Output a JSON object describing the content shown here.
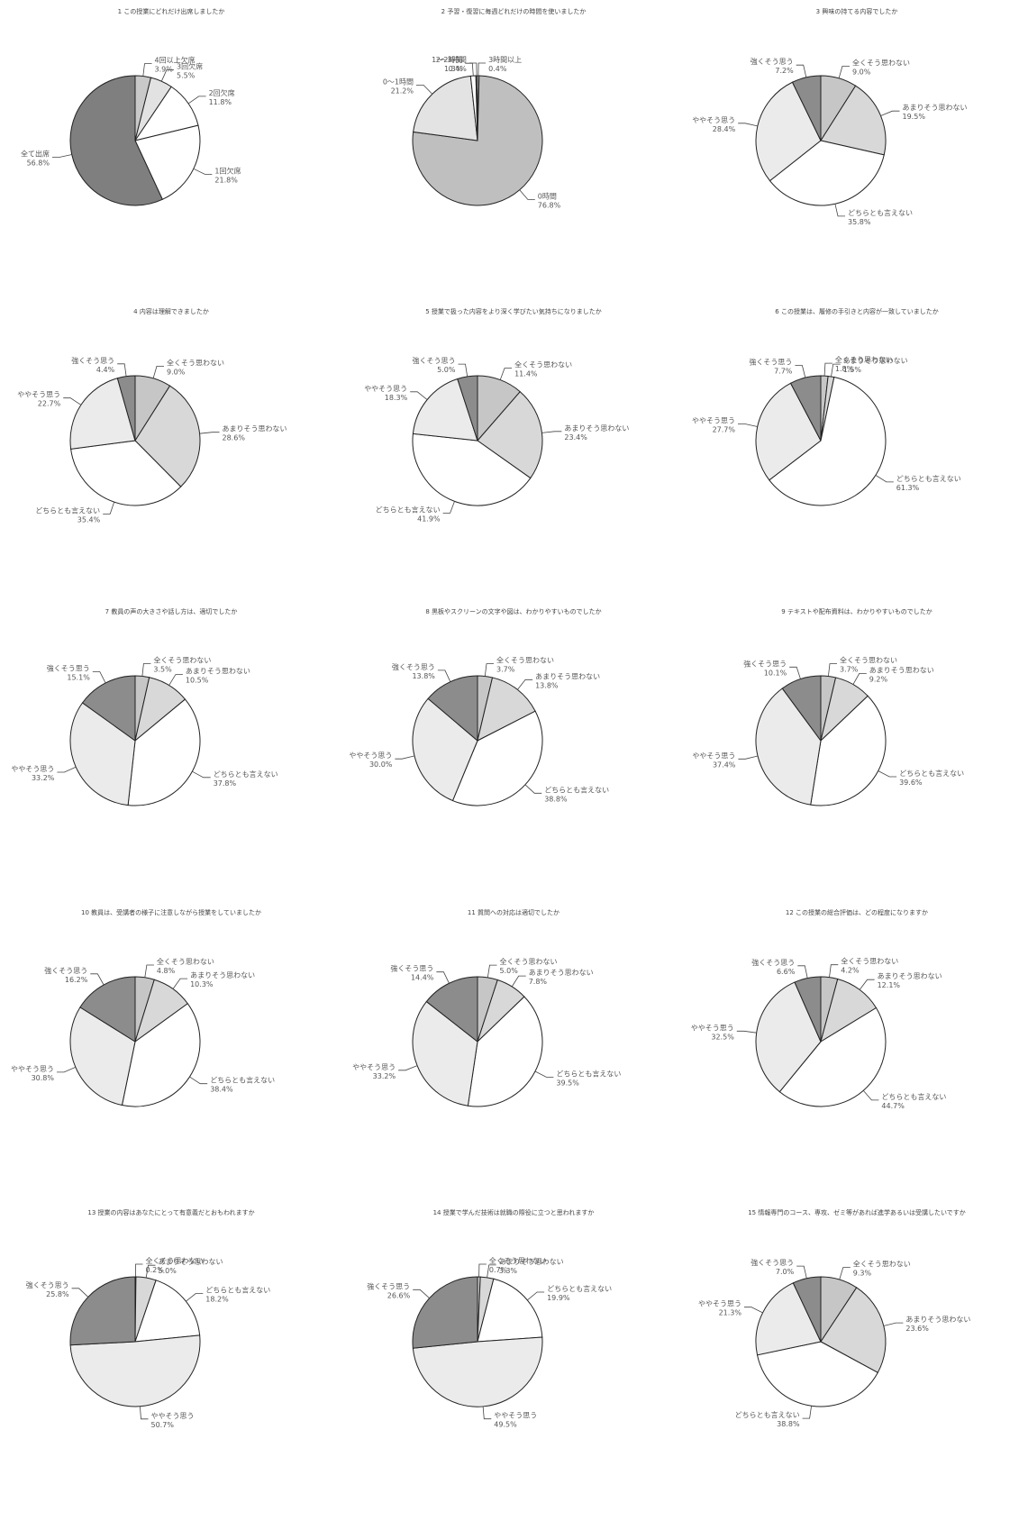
{
  "chart_data": [
    {
      "type": "pie",
      "title": "1 この授業にどれだけ出席しましたか",
      "slices": [
        {
          "label": "4回以上欠席",
          "pct_text": "3.9%",
          "value": 3.9,
          "color": "#c9c9c9"
        },
        {
          "label": "3回欠席",
          "pct_text": "5.5%",
          "value": 5.5,
          "color": "#e2e2e2"
        },
        {
          "label": "2回欠席",
          "pct_text": "11.8%",
          "value": 11.8,
          "color": "#ffffff"
        },
        {
          "label": "1回欠席",
          "pct_text": "21.8%",
          "value": 21.8,
          "color": "#ffffff"
        },
        {
          "label": "全て出席",
          "pct_text": "56.8%",
          "value": 56.8,
          "color": "#7f7f7f"
        }
      ]
    },
    {
      "type": "pie",
      "title": "2 予習・復習に毎週どれだけの時間を使いましたか",
      "slices": [
        {
          "label": "3時間以上",
          "pct_text": "0.4%",
          "value": 0.4,
          "color": "#ffffff"
        },
        {
          "label": "0時間",
          "pct_text": "76.8%",
          "value": 76.8,
          "color": "#bfbfbf"
        },
        {
          "label": "0〜1時間",
          "pct_text": "21.2%",
          "value": 21.2,
          "color": "#e3e3e3"
        },
        {
          "label": "1〜2時間",
          "pct_text": "1.3%",
          "value": 1.3,
          "color": "#ffffff"
        },
        {
          "label": "2〜3時間",
          "pct_text": "0.4%",
          "value": 0.4,
          "color": "#666666"
        }
      ]
    },
    {
      "type": "pie",
      "title": "3 興味の持てる内容でしたか",
      "slices": [
        {
          "label": "全くそう思わない",
          "pct_text": "9.0%",
          "value": 9.0,
          "color": "#c6c6c6"
        },
        {
          "label": "あまりそう思わない",
          "pct_text": "19.5%",
          "value": 19.5,
          "color": "#d8d8d8"
        },
        {
          "label": "どちらとも言えない",
          "pct_text": "35.8%",
          "value": 35.8,
          "color": "#ffffff"
        },
        {
          "label": "ややそう思う",
          "pct_text": "28.4%",
          "value": 28.4,
          "color": "#ebebeb"
        },
        {
          "label": "強くそう思う",
          "pct_text": "7.2%",
          "value": 7.2,
          "color": "#8c8c8c"
        }
      ]
    },
    {
      "type": "pie",
      "title": "4 内容は理解できましたか",
      "slices": [
        {
          "label": "全くそう思わない",
          "pct_text": "9.0%",
          "value": 9.0,
          "color": "#c6c6c6"
        },
        {
          "label": "あまりそう思わない",
          "pct_text": "28.6%",
          "value": 28.6,
          "color": "#d8d8d8"
        },
        {
          "label": "どちらとも言えない",
          "pct_text": "35.4%",
          "value": 35.4,
          "color": "#ffffff"
        },
        {
          "label": "ややそう思う",
          "pct_text": "22.7%",
          "value": 22.7,
          "color": "#ebebeb"
        },
        {
          "label": "強くそう思う",
          "pct_text": "4.4%",
          "value": 4.4,
          "color": "#8c8c8c"
        }
      ]
    },
    {
      "type": "pie",
      "title": "5 授業で扱った内容をより深く学びたい気持ちになりましたか",
      "slices": [
        {
          "label": "全くそう思わない",
          "pct_text": "11.4%",
          "value": 11.4,
          "color": "#c6c6c6"
        },
        {
          "label": "あまりそう思わない",
          "pct_text": "23.4%",
          "value": 23.4,
          "color": "#d8d8d8"
        },
        {
          "label": "どちらとも言えない",
          "pct_text": "41.9%",
          "value": 41.9,
          "color": "#ffffff"
        },
        {
          "label": "ややそう思う",
          "pct_text": "18.3%",
          "value": 18.3,
          "color": "#ebebeb"
        },
        {
          "label": "強くそう思う",
          "pct_text": "5.0%",
          "value": 5.0,
          "color": "#8c8c8c"
        }
      ]
    },
    {
      "type": "pie",
      "title": "6 この授業は、履修の手引きと内容が一致していましたか",
      "slices": [
        {
          "label": "全くそう思わない",
          "pct_text": "1.8%",
          "value": 1.8,
          "color": "#c6c6c6"
        },
        {
          "label": "あまりそう思わない",
          "pct_text": "1.5%",
          "value": 1.5,
          "color": "#d8d8d8"
        },
        {
          "label": "どちらとも言えない",
          "pct_text": "61.3%",
          "value": 61.3,
          "color": "#ffffff"
        },
        {
          "label": "ややそう思う",
          "pct_text": "27.7%",
          "value": 27.7,
          "color": "#ebebeb"
        },
        {
          "label": "強くそう思う",
          "pct_text": "7.7%",
          "value": 7.7,
          "color": "#8c8c8c"
        }
      ]
    },
    {
      "type": "pie",
      "title": "7 教員の声の大きさや話し方は、適切でしたか",
      "slices": [
        {
          "label": "全くそう思わない",
          "pct_text": "3.5%",
          "value": 3.5,
          "color": "#c6c6c6"
        },
        {
          "label": "あまりそう思わない",
          "pct_text": "10.5%",
          "value": 10.5,
          "color": "#d8d8d8"
        },
        {
          "label": "どちらとも言えない",
          "pct_text": "37.8%",
          "value": 37.8,
          "color": "#ffffff"
        },
        {
          "label": "ややそう思う",
          "pct_text": "33.2%",
          "value": 33.2,
          "color": "#ebebeb"
        },
        {
          "label": "強くそう思う",
          "pct_text": "15.1%",
          "value": 15.1,
          "color": "#8c8c8c"
        }
      ]
    },
    {
      "type": "pie",
      "title": "8 黒板やスクリーンの文字や図は、わかりやすいものでしたか",
      "slices": [
        {
          "label": "全くそう思わない",
          "pct_text": "3.7%",
          "value": 3.7,
          "color": "#c6c6c6"
        },
        {
          "label": "あまりそう思わない",
          "pct_text": "13.8%",
          "value": 13.8,
          "color": "#d8d8d8"
        },
        {
          "label": "どちらとも言えない",
          "pct_text": "38.8%",
          "value": 38.8,
          "color": "#ffffff"
        },
        {
          "label": "ややそう思う",
          "pct_text": "30.0%",
          "value": 30.0,
          "color": "#ebebeb"
        },
        {
          "label": "強くそう思う",
          "pct_text": "13.8%",
          "value": 13.8,
          "color": "#8c8c8c"
        }
      ]
    },
    {
      "type": "pie",
      "title": "9 テキストや配布資料は、わかりやすいものでしたか",
      "slices": [
        {
          "label": "全くそう思わない",
          "pct_text": "3.7%",
          "value": 3.7,
          "color": "#c6c6c6"
        },
        {
          "label": "あまりそう思わない",
          "pct_text": "9.2%",
          "value": 9.2,
          "color": "#d8d8d8"
        },
        {
          "label": "どちらとも言えない",
          "pct_text": "39.6%",
          "value": 39.6,
          "color": "#ffffff"
        },
        {
          "label": "ややそう思う",
          "pct_text": "37.4%",
          "value": 37.4,
          "color": "#ebebeb"
        },
        {
          "label": "強くそう思う",
          "pct_text": "10.1%",
          "value": 10.1,
          "color": "#8c8c8c"
        }
      ]
    },
    {
      "type": "pie",
      "title": "10 教員は、受講者の様子に注意しながら授業をしていましたか",
      "slices": [
        {
          "label": "全くそう思わない",
          "pct_text": "4.8%",
          "value": 4.8,
          "color": "#c6c6c6"
        },
        {
          "label": "あまりそう思わない",
          "pct_text": "10.3%",
          "value": 10.3,
          "color": "#d8d8d8"
        },
        {
          "label": "どちらとも言えない",
          "pct_text": "38.4%",
          "value": 38.4,
          "color": "#ffffff"
        },
        {
          "label": "ややそう思う",
          "pct_text": "30.8%",
          "value": 30.8,
          "color": "#ebebeb"
        },
        {
          "label": "強くそう思う",
          "pct_text": "16.2%",
          "value": 16.2,
          "color": "#8c8c8c"
        }
      ]
    },
    {
      "type": "pie",
      "title": "11 質問への対応は適切でしたか",
      "slices": [
        {
          "label": "全くそう思わない",
          "pct_text": "5.0%",
          "value": 5.0,
          "color": "#c6c6c6"
        },
        {
          "label": "あまりそう思わない",
          "pct_text": "7.8%",
          "value": 7.8,
          "color": "#d8d8d8"
        },
        {
          "label": "どちらとも言えない",
          "pct_text": "39.5%",
          "value": 39.5,
          "color": "#ffffff"
        },
        {
          "label": "ややそう思う",
          "pct_text": "33.2%",
          "value": 33.2,
          "color": "#ebebeb"
        },
        {
          "label": "強くそう思う",
          "pct_text": "14.4%",
          "value": 14.4,
          "color": "#8c8c8c"
        }
      ]
    },
    {
      "type": "pie",
      "title": "12 この授業の総合評価は、どの程度になりますか",
      "slices": [
        {
          "label": "全くそう思わない",
          "pct_text": "4.2%",
          "value": 4.2,
          "color": "#c6c6c6"
        },
        {
          "label": "あまりそう思わない",
          "pct_text": "12.1%",
          "value": 12.1,
          "color": "#d8d8d8"
        },
        {
          "label": "どちらとも言えない",
          "pct_text": "44.7%",
          "value": 44.7,
          "color": "#ffffff"
        },
        {
          "label": "ややそう思う",
          "pct_text": "32.5%",
          "value": 32.5,
          "color": "#ebebeb"
        },
        {
          "label": "強くそう思う",
          "pct_text": "6.6%",
          "value": 6.6,
          "color": "#8c8c8c"
        }
      ]
    },
    {
      "type": "pie",
      "title": "13 授業の内容はあなたにとって有意義だとおもわれますか",
      "slices": [
        {
          "label": "全くそう思わない",
          "pct_text": "0.2%",
          "value": 0.2,
          "color": "#c6c6c6"
        },
        {
          "label": "あまりそう思わない",
          "pct_text": "5.0%",
          "value": 5.0,
          "color": "#d8d8d8"
        },
        {
          "label": "どちらとも言えない",
          "pct_text": "18.2%",
          "value": 18.2,
          "color": "#ffffff"
        },
        {
          "label": "ややそう思う",
          "pct_text": "50.7%",
          "value": 50.7,
          "color": "#ebebeb"
        },
        {
          "label": "強くそう思う",
          "pct_text": "25.8%",
          "value": 25.8,
          "color": "#8c8c8c"
        }
      ]
    },
    {
      "type": "pie",
      "title": "14 授業で学んだ技術は就職の際役に立つと思われますか",
      "slices": [
        {
          "label": "全くそう思わない",
          "pct_text": "0.7%",
          "value": 0.7,
          "color": "#c6c6c6"
        },
        {
          "label": "あまりそう思わない",
          "pct_text": "3.3%",
          "value": 3.3,
          "color": "#d8d8d8"
        },
        {
          "label": "どちらとも言えない",
          "pct_text": "19.9%",
          "value": 19.9,
          "color": "#ffffff"
        },
        {
          "label": "ややそう思う",
          "pct_text": "49.5%",
          "value": 49.5,
          "color": "#ebebeb"
        },
        {
          "label": "強くそう思う",
          "pct_text": "26.6%",
          "value": 26.6,
          "color": "#8c8c8c"
        }
      ]
    },
    {
      "type": "pie",
      "title": "15 情報専門のコース、専攻、ゼミ等があれば進学あるいは受講したいですか",
      "slices": [
        {
          "label": "全くそう思わない",
          "pct_text": "9.3%",
          "value": 9.3,
          "color": "#c6c6c6"
        },
        {
          "label": "あまりそう思わない",
          "pct_text": "23.6%",
          "value": 23.6,
          "color": "#d8d8d8"
        },
        {
          "label": "どちらとも言えない",
          "pct_text": "38.8%",
          "value": 38.8,
          "color": "#ffffff"
        },
        {
          "label": "ややそう思う",
          "pct_text": "21.3%",
          "value": 21.3,
          "color": "#ebebeb"
        },
        {
          "label": "強くそう思う",
          "pct_text": "7.0%",
          "value": 7.0,
          "color": "#8c8c8c"
        }
      ]
    }
  ]
}
